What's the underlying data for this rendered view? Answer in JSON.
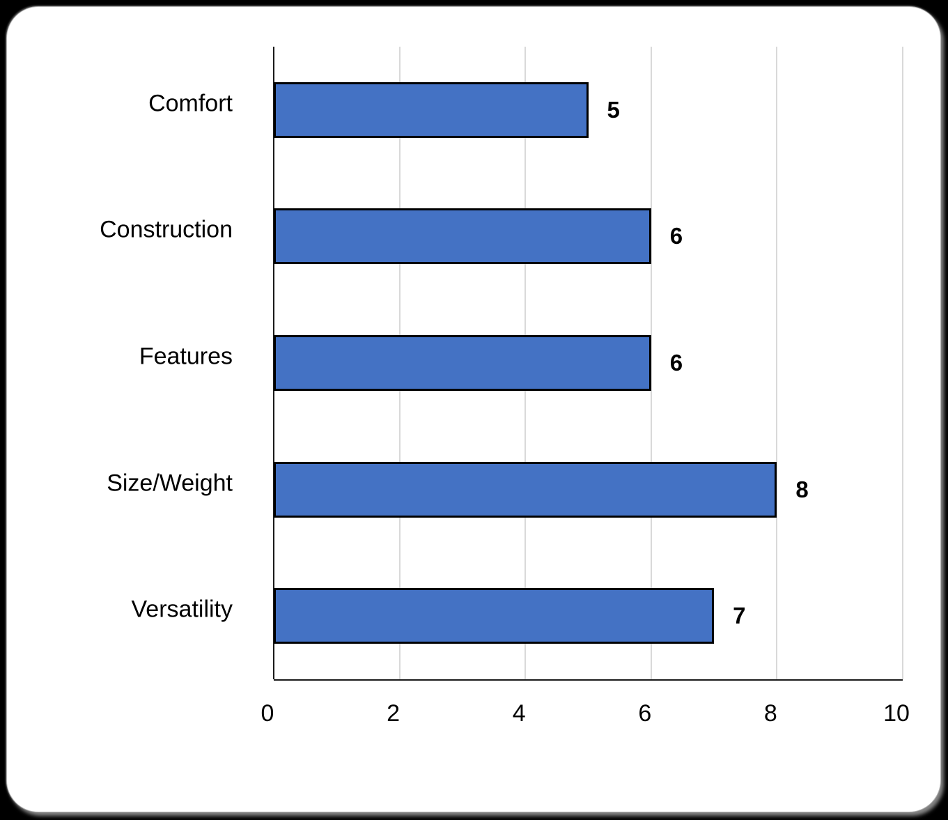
{
  "chart_data": {
    "type": "bar",
    "orientation": "horizontal",
    "title": "",
    "xlabel": "",
    "ylabel": "",
    "categories": [
      "Comfort",
      "Construction",
      "Features",
      "Size/Weight",
      "Versatility"
    ],
    "values": [
      5,
      6,
      6,
      8,
      7
    ],
    "value_labels": [
      "5",
      "6",
      "6",
      "8",
      "7"
    ],
    "xlim": [
      0,
      10
    ],
    "xticks": [
      0,
      2,
      4,
      6,
      8,
      10
    ],
    "xtick_labels": [
      "0",
      "2",
      "4",
      "6",
      "8",
      "10"
    ],
    "grid": "vertical-gridlines-on",
    "legend": "none",
    "colors": {
      "bar_fill": "#4472C4",
      "bar_border": "#000000",
      "gridline": "#D9D9D9",
      "axis_line": "#1a1a1a",
      "text": "#000000",
      "panel_background": "#FFFFFF",
      "page_background": "#000000"
    }
  }
}
